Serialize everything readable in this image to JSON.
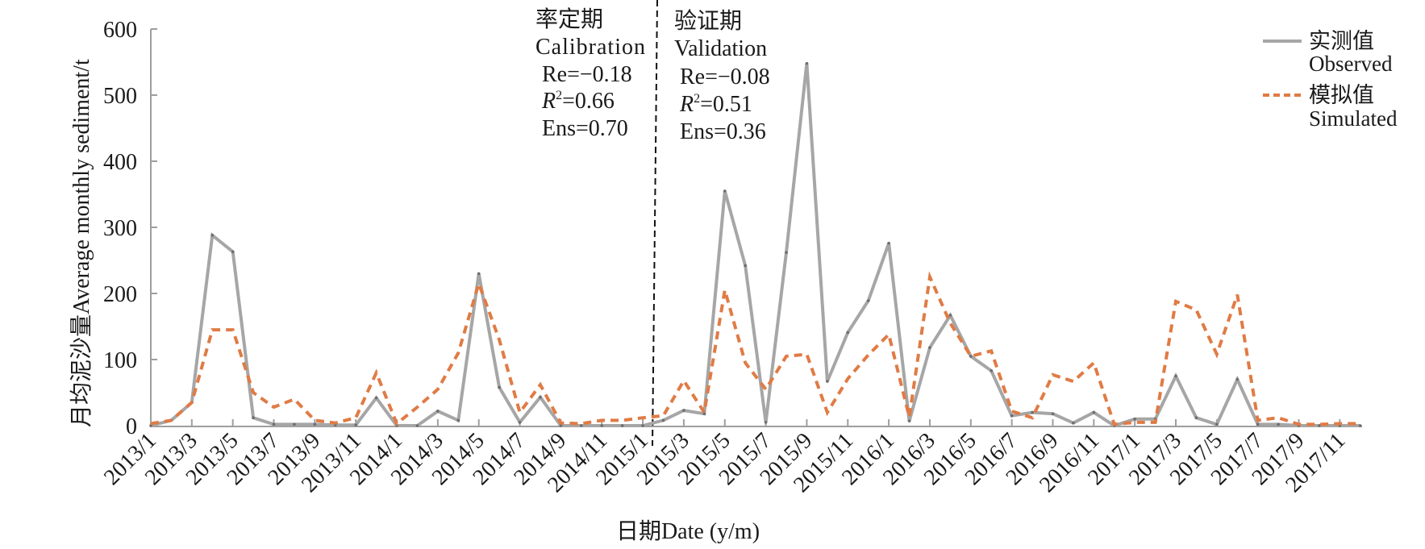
{
  "chart_data": {
    "type": "line",
    "title": "",
    "xlabel": "日期Date (y/m)",
    "ylabel": "月均泥沙量Average monthly sediment/t",
    "ylim": [
      0,
      600
    ],
    "yticks": [
      "0",
      "100",
      "200",
      "300",
      "400",
      "500",
      "600"
    ],
    "grid": false,
    "legend_position": "top-right",
    "x": [
      "2013/1",
      "2013/2",
      "2013/3",
      "2013/4",
      "2013/5",
      "2013/6",
      "2013/7",
      "2013/8",
      "2013/9",
      "2013/10",
      "2013/11",
      "2013/12",
      "2014/1",
      "2014/2",
      "2014/3",
      "2014/4",
      "2014/5",
      "2014/6",
      "2014/7",
      "2014/8",
      "2014/9",
      "2014/10",
      "2014/11",
      "2014/12",
      "2015/1",
      "2015/2",
      "2015/3",
      "2015/4",
      "2015/5",
      "2015/6",
      "2015/7",
      "2015/8",
      "2015/9",
      "2015/10",
      "2015/11",
      "2015/12",
      "2016/1",
      "2016/2",
      "2016/3",
      "2016/4",
      "2016/5",
      "2016/6",
      "2016/7",
      "2016/8",
      "2016/9",
      "2016/10",
      "2016/11",
      "2016/12",
      "2017/1",
      "2017/2",
      "2017/3",
      "2017/4",
      "2017/5",
      "2017/6",
      "2017/7",
      "2017/8",
      "2017/9",
      "2017/10",
      "2017/11",
      "2017/12"
    ],
    "xtick_labels": [
      "2013/1",
      "2013/3",
      "2013/5",
      "2013/7",
      "2013/9",
      "2013/11",
      "2014/1",
      "2014/3",
      "2014/5",
      "2014/7",
      "2014/9",
      "2014/11",
      "2015/1",
      "2015/3",
      "2015/5",
      "2015/7",
      "2015/9",
      "2015/11",
      "2016/1",
      "2016/3",
      "2016/5",
      "2016/7",
      "2016/9",
      "2016/11",
      "2017/1",
      "2017/3",
      "2017/5",
      "2017/7",
      "2017/9",
      "2017/11"
    ],
    "series": [
      {
        "name": "实测值 Observed",
        "name_cn": "实测值",
        "name_en": "Observed",
        "color": "#a6a6a6",
        "style": "solid",
        "values": [
          0,
          8,
          35,
          288,
          263,
          12,
          2,
          2,
          2,
          1,
          1,
          42,
          0,
          0,
          22,
          8,
          230,
          58,
          5,
          43,
          0,
          0,
          0,
          0,
          0,
          8,
          23,
          18,
          355,
          242,
          5,
          262,
          548,
          67,
          141,
          189,
          276,
          7,
          118,
          167,
          105,
          83,
          15,
          20,
          18,
          4,
          20,
          0,
          10,
          10,
          75,
          12,
          2,
          70,
          2,
          2,
          0,
          0,
          0,
          0
        ]
      },
      {
        "name": "模拟值 Simulated",
        "name_cn": "模拟值",
        "name_en": "Simulated",
        "color": "#e07b45",
        "style": "dashed",
        "values": [
          3,
          8,
          35,
          145,
          145,
          50,
          28,
          40,
          8,
          4,
          12,
          80,
          3,
          28,
          55,
          110,
          215,
          130,
          20,
          62,
          4,
          3,
          8,
          8,
          12,
          15,
          68,
          20,
          205,
          95,
          55,
          105,
          108,
          20,
          71,
          107,
          138,
          13,
          225,
          155,
          105,
          113,
          22,
          12,
          77,
          67,
          95,
          2,
          5,
          5,
          188,
          175,
          108,
          198,
          8,
          12,
          2,
          2,
          3,
          3
        ]
      }
    ],
    "divider": {
      "between": [
        "2015/1",
        "2015/2"
      ],
      "style": "dashed",
      "color": "#111111"
    },
    "annotations": {
      "calibration": {
        "title_cn": "率定期",
        "title_en": "Calibration",
        "re": "Re=−0.18",
        "r2_symbol": "R",
        "r2_sup": "2",
        "r2_value": "=0.66",
        "ens": "Ens=0.70"
      },
      "validation": {
        "title_cn": "验证期",
        "title_en": "Validation",
        "re": "Re=−0.08",
        "r2_symbol": "R",
        "r2_sup": "2",
        "r2_value": "=0.51",
        "ens": "Ens=0.36"
      }
    }
  }
}
